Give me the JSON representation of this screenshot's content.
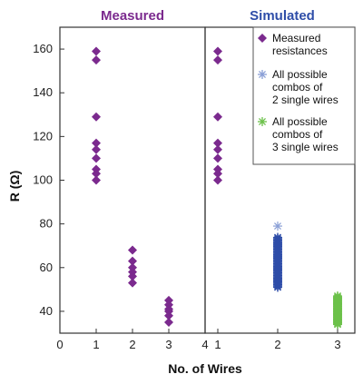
{
  "chart_data": {
    "type": "scatter",
    "ylabel": "R (Ω)",
    "xlabel": "No. of Wires",
    "ylim": [
      30,
      170
    ],
    "yticks": [
      40,
      60,
      80,
      100,
      120,
      140,
      160
    ],
    "grid": false,
    "legend_position": "top-right",
    "colors": {
      "measured": "#7b2a8e",
      "combo2": "#2e4da8",
      "combo2_light": "#8a9fd6",
      "combo3": "#6cc14a",
      "simulated_title": "#2e4da8",
      "measured_title": "#7b2a8e"
    },
    "panels": [
      {
        "title": "Measured",
        "xlim": [
          0,
          4
        ],
        "xticks": [
          0,
          1,
          2,
          3,
          4
        ],
        "series": [
          {
            "name": "Measured resistances",
            "marker": "diamond",
            "points": [
              [
                1,
                159
              ],
              [
                1,
                155
              ],
              [
                1,
                129
              ],
              [
                1,
                117
              ],
              [
                1,
                114
              ],
              [
                1,
                110
              ],
              [
                1,
                105
              ],
              [
                1,
                103
              ],
              [
                1,
                100
              ],
              [
                2,
                68
              ],
              [
                2,
                63
              ],
              [
                2,
                60
              ],
              [
                2,
                58
              ],
              [
                2,
                56
              ],
              [
                2,
                53
              ],
              [
                3,
                45
              ],
              [
                3,
                43
              ],
              [
                3,
                41
              ],
              [
                3,
                40
              ],
              [
                3,
                38
              ],
              [
                3,
                35
              ]
            ]
          }
        ]
      },
      {
        "title": "Simulated",
        "xticks": [
          1,
          2,
          3
        ],
        "series": [
          {
            "name": "Measured resistances",
            "marker": "diamond",
            "points": [
              [
                1,
                159
              ],
              [
                1,
                155
              ],
              [
                1,
                129
              ],
              [
                1,
                117
              ],
              [
                1,
                114
              ],
              [
                1,
                110
              ],
              [
                1,
                105
              ],
              [
                1,
                103
              ],
              [
                1,
                100
              ]
            ]
          },
          {
            "name": "All possible combos of 2 single wires",
            "marker": "asterisk",
            "x": 2,
            "y_range": [
              51,
              74
            ],
            "outlier": 79
          },
          {
            "name": "All possible combos of 3 single wires",
            "marker": "asterisk",
            "x": 3,
            "y_range": [
              34,
              47
            ]
          }
        ]
      }
    ],
    "legend": [
      {
        "label": "Measured resistances",
        "marker": "diamond"
      },
      {
        "label": "All possible combos of 2 single wires",
        "marker": "asterisk"
      },
      {
        "label": "All possible combos of 3 single wires",
        "marker": "asterisk"
      }
    ],
    "legend_lines": [
      [
        "Measured",
        "resistances"
      ],
      [
        "All possible",
        "combos of",
        "2 single wires"
      ],
      [
        "All possible",
        "combos of",
        "3 single wires"
      ]
    ]
  }
}
